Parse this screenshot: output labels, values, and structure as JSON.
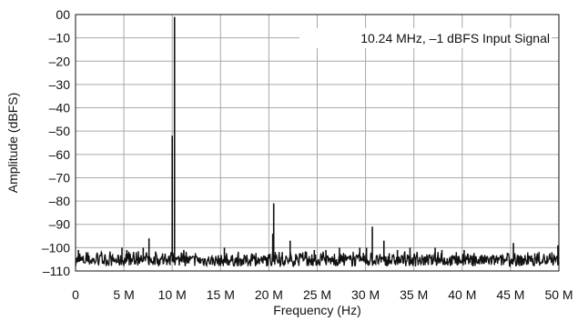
{
  "chart_data": {
    "type": "line",
    "title": "",
    "xlabel": "Frequency (Hz)",
    "ylabel": "Amplitude (dBFS)",
    "xlim": [
      0,
      50
    ],
    "ylim": [
      -110,
      0
    ],
    "grid": true,
    "annotation": "10.24 MHz, –1 dBFS Input Signal",
    "x_ticks": [
      {
        "value": 0,
        "label": "0"
      },
      {
        "value": 5,
        "label": "5 M"
      },
      {
        "value": 10,
        "label": "10 M"
      },
      {
        "value": 15,
        "label": "15 M"
      },
      {
        "value": 20,
        "label": "20 M"
      },
      {
        "value": 25,
        "label": "25 M"
      },
      {
        "value": 30,
        "label": "30 M"
      },
      {
        "value": 35,
        "label": "35 M"
      },
      {
        "value": 40,
        "label": "40 M"
      },
      {
        "value": 45,
        "label": "45 M"
      },
      {
        "value": 50,
        "label": "50 M"
      }
    ],
    "y_ticks": [
      {
        "value": 0,
        "label": "00"
      },
      {
        "value": -10,
        "label": "–10"
      },
      {
        "value": -20,
        "label": "–20"
      },
      {
        "value": -30,
        "label": "–30"
      },
      {
        "value": -40,
        "label": "–40"
      },
      {
        "value": -50,
        "label": "–50"
      },
      {
        "value": -60,
        "label": "–60"
      },
      {
        "value": -70,
        "label": "–70"
      },
      {
        "value": -80,
        "label": "–80"
      },
      {
        "value": -90,
        "label": "–90"
      },
      {
        "value": -100,
        "label": "–100"
      },
      {
        "value": -110,
        "label": "–110"
      }
    ],
    "noise_floor": {
      "min": -108,
      "max": -103
    },
    "spurs": [
      {
        "x": 0.3,
        "y": -101
      },
      {
        "x": 4.8,
        "y": -100
      },
      {
        "x": 5.3,
        "y": -101
      },
      {
        "x": 7.0,
        "y": -100
      },
      {
        "x": 7.6,
        "y": -96
      },
      {
        "x": 10.0,
        "y": -52
      },
      {
        "x": 10.24,
        "y": -1
      },
      {
        "x": 11.2,
        "y": -101
      },
      {
        "x": 15.4,
        "y": -100
      },
      {
        "x": 20.4,
        "y": -94
      },
      {
        "x": 20.5,
        "y": -81
      },
      {
        "x": 22.2,
        "y": -97
      },
      {
        "x": 24.7,
        "y": -101
      },
      {
        "x": 25.9,
        "y": -101
      },
      {
        "x": 27.3,
        "y": -100
      },
      {
        "x": 29.4,
        "y": -100
      },
      {
        "x": 30.1,
        "y": -100
      },
      {
        "x": 30.7,
        "y": -91
      },
      {
        "x": 31.9,
        "y": -97
      },
      {
        "x": 33.3,
        "y": -101
      },
      {
        "x": 34.6,
        "y": -100
      },
      {
        "x": 37.2,
        "y": -100
      },
      {
        "x": 37.9,
        "y": -101
      },
      {
        "x": 40.2,
        "y": -101
      },
      {
        "x": 45.3,
        "y": -98
      },
      {
        "x": 49.9,
        "y": -99
      }
    ]
  }
}
